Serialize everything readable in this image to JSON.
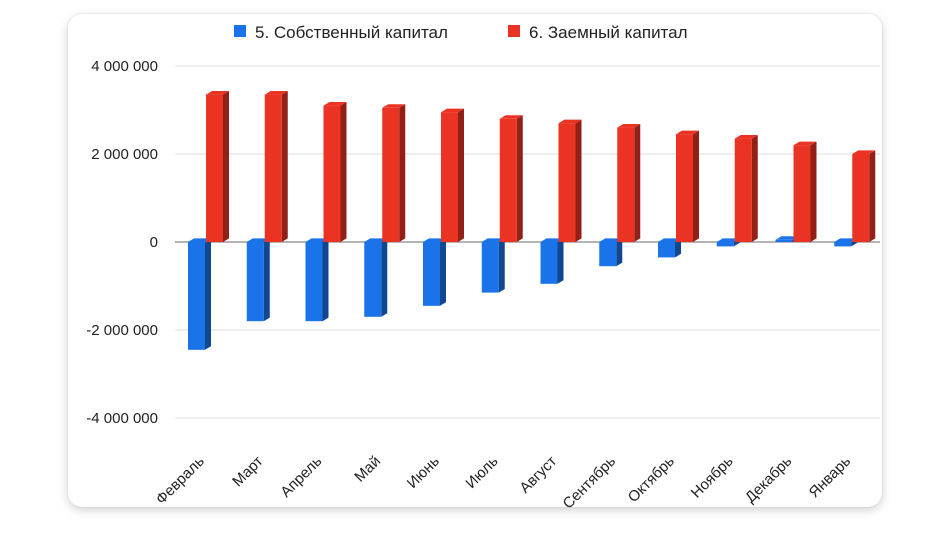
{
  "chart_data": {
    "type": "bar",
    "style": "3d-column",
    "categories": [
      "Февраль",
      "Март",
      "Апрель",
      "Май",
      "Июнь",
      "Июль",
      "Август",
      "Сентябрь",
      "Октябрь",
      "Ноябрь",
      "Декабрь",
      "Январь"
    ],
    "series": [
      {
        "name": "5. Собственный капитал",
        "color": "#1a73e8",
        "values": [
          -2450000,
          -1800000,
          -1800000,
          -1700000,
          -1450000,
          -1150000,
          -950000,
          -550000,
          -350000,
          -100000,
          50000,
          -100000
        ]
      },
      {
        "name": "6. Заемный капитал",
        "color": "#ea3323",
        "values": [
          3350000,
          3350000,
          3100000,
          3050000,
          2950000,
          2800000,
          2700000,
          2600000,
          2450000,
          2350000,
          2200000,
          2000000
        ]
      }
    ],
    "y_ticks": [
      "4 000 000",
      "2 000 000",
      "0",
      "-2 000 000",
      "-4 000 000"
    ],
    "y_tick_values": [
      4000000,
      2000000,
      0,
      -2000000,
      -4000000
    ],
    "ylim": [
      -4000000,
      4000000
    ],
    "grid": true,
    "legend": "top-center"
  }
}
